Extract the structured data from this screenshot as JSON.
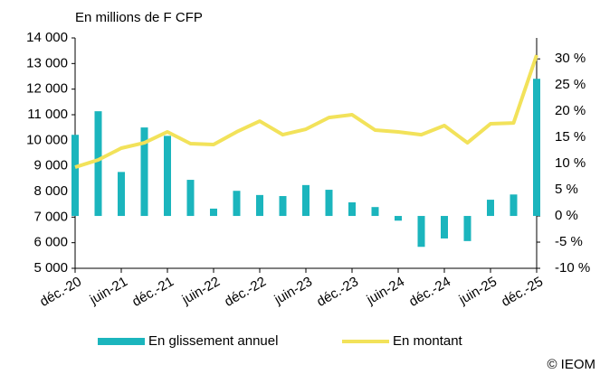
{
  "chart_data": {
    "type": "bar-line",
    "subtitle": "En millions de F CFP",
    "credit": "© IEOM",
    "categories": [
      "déc.-20",
      null,
      "juin-21",
      null,
      "déc.-21",
      null,
      "juin-22",
      null,
      "déc.-22",
      null,
      "juin-23",
      null,
      "déc.-23",
      null,
      "juin-24",
      null,
      "déc.-24",
      null,
      "juin-25",
      null,
      "déc.-25"
    ],
    "series": [
      {
        "name": "En glissement annuel",
        "type": "bar",
        "axis": "y2",
        "color": "#1bb5bd",
        "values": [
          15.5,
          20,
          8.4,
          16.9,
          15.3,
          6.9,
          1.4,
          4.8,
          4.0,
          3.8,
          5.9,
          5.0,
          2.6,
          1.7,
          -0.9,
          -5.9,
          -4.3,
          -4.8,
          3.1,
          4.1,
          26.2
        ]
      },
      {
        "name": "En montant",
        "type": "line",
        "axis": "y",
        "color": "#f2e25a",
        "values": [
          8950,
          9235,
          9694,
          9905,
          10330,
          9870,
          9835,
          10330,
          10750,
          10220,
          10435,
          10890,
          11000,
          10400,
          10330,
          10220,
          10575,
          9905,
          10645,
          10680,
          13330
        ]
      }
    ],
    "ylim": [
      5000,
      14000
    ],
    "yticks": [
      {
        "value": 5000,
        "label": "5 000"
      },
      {
        "value": 6000,
        "label": "6 000"
      },
      {
        "value": 7000,
        "label": "7 000"
      },
      {
        "value": 8000,
        "label": "8 000"
      },
      {
        "value": 9000,
        "label": "9 000"
      },
      {
        "value": 10000,
        "label": "10 000"
      },
      {
        "value": 11000,
        "label": "11 000"
      },
      {
        "value": 12000,
        "label": "12 000"
      },
      {
        "value": 13000,
        "label": "13 000"
      },
      {
        "value": 14000,
        "label": "14 000"
      }
    ],
    "y2lim": [
      -10,
      34
    ],
    "y2ticks": [
      {
        "value": -10,
        "label": "-10 %"
      },
      {
        "value": -5,
        "label": "-5 %"
      },
      {
        "value": 0,
        "label": "0 %"
      },
      {
        "value": 5,
        "label": "5 %"
      },
      {
        "value": 10,
        "label": "10 %"
      },
      {
        "value": 15,
        "label": "15 %"
      },
      {
        "value": 20,
        "label": "20 %"
      },
      {
        "value": 25,
        "label": "25 %"
      },
      {
        "value": 30,
        "label": "30 %"
      }
    ],
    "legend": "bottom"
  }
}
